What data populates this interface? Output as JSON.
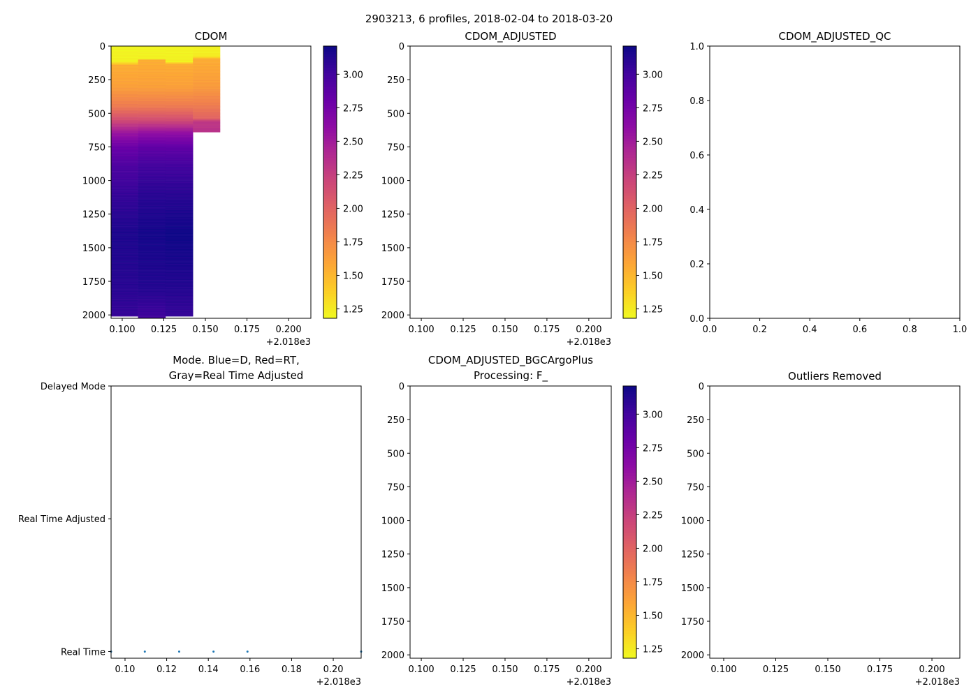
{
  "suptitle": "2903213, 6 profiles, 2018-02-04 to 2018-03-20",
  "colors": {
    "scatter": "#1f77b4",
    "axis": "#000000"
  },
  "chart_data": [
    {
      "id": "cdom",
      "type": "heatmap",
      "title": "CDOM",
      "xlim": [
        0.0933,
        0.2134
      ],
      "x_offset_label": "+2.018e3",
      "xticks": [
        0.1,
        0.125,
        0.15,
        0.175,
        0.2
      ],
      "xtick_labels": [
        "0.100",
        "0.125",
        "0.150",
        "0.175",
        "0.200"
      ],
      "ylim": [
        2025,
        0
      ],
      "yticks": [
        0,
        250,
        500,
        750,
        1000,
        1250,
        1500,
        1750,
        2000
      ],
      "ytick_labels": [
        "0",
        "250",
        "500",
        "750",
        "1000",
        "1250",
        "1500",
        "1750",
        "2000"
      ],
      "colorbar": {
        "cmap": "plasma_r",
        "vmin": 1.18,
        "vmax": 3.21,
        "ticks": [
          1.25,
          1.5,
          1.75,
          2.0,
          2.25,
          2.5,
          2.75,
          3.0
        ],
        "tick_labels": [
          "1.25",
          "1.50",
          "1.75",
          "2.00",
          "2.25",
          "2.50",
          "2.75",
          "3.00"
        ]
      },
      "profiles": [
        {
          "x0": 0.0933,
          "x1": 0.1095,
          "max_depth": 2010,
          "depths": [
            0,
            120,
            140,
            300,
            450,
            550,
            650,
            750,
            900,
            1100,
            1400,
            1800,
            2010
          ],
          "values": [
            1.2,
            1.22,
            1.55,
            1.62,
            1.85,
            2.15,
            2.55,
            2.8,
            2.95,
            3.05,
            3.15,
            3.1,
            3.05
          ]
        },
        {
          "x0": 0.1095,
          "x1": 0.126,
          "max_depth": 2025,
          "depths": [
            0,
            95,
            105,
            300,
            450,
            550,
            650,
            750,
            900,
            1100,
            1400,
            1800,
            2025
          ],
          "values": [
            1.2,
            1.22,
            1.55,
            1.62,
            1.85,
            2.15,
            2.6,
            2.85,
            3.0,
            3.1,
            3.18,
            3.12,
            3.0
          ]
        },
        {
          "x0": 0.126,
          "x1": 0.1425,
          "max_depth": 2010,
          "depths": [
            0,
            120,
            135,
            300,
            450,
            550,
            650,
            750,
            900,
            1100,
            1400,
            1800,
            2010
          ],
          "values": [
            1.2,
            1.22,
            1.55,
            1.62,
            1.85,
            2.15,
            2.6,
            2.85,
            3.0,
            3.1,
            3.2,
            3.12,
            3.05
          ]
        },
        {
          "x0": 0.1425,
          "x1": 0.1588,
          "max_depth": 640,
          "depths": [
            0,
            80,
            95,
            300,
            450,
            540,
            560,
            640
          ],
          "values": [
            1.2,
            1.25,
            1.55,
            1.65,
            1.85,
            2.0,
            2.3,
            2.35
          ]
        }
      ]
    },
    {
      "id": "cdom_adjusted",
      "type": "heatmap",
      "title": "CDOM_ADJUSTED",
      "xlim": [
        0.0933,
        0.2134
      ],
      "x_offset_label": "+2.018e3",
      "xticks": [
        0.1,
        0.125,
        0.15,
        0.175,
        0.2
      ],
      "xtick_labels": [
        "0.100",
        "0.125",
        "0.150",
        "0.175",
        "0.200"
      ],
      "ylim": [
        2025,
        0
      ],
      "yticks": [
        0,
        250,
        500,
        750,
        1000,
        1250,
        1500,
        1750,
        2000
      ],
      "ytick_labels": [
        "0",
        "250",
        "500",
        "750",
        "1000",
        "1250",
        "1500",
        "1750",
        "2000"
      ],
      "colorbar": {
        "cmap": "plasma_r",
        "vmin": 1.18,
        "vmax": 3.21,
        "ticks": [
          1.25,
          1.5,
          1.75,
          2.0,
          2.25,
          2.5,
          2.75,
          3.0
        ],
        "tick_labels": [
          "1.25",
          "1.50",
          "1.75",
          "2.00",
          "2.25",
          "2.50",
          "2.75",
          "3.00"
        ]
      },
      "profiles": []
    },
    {
      "id": "cdom_adjusted_qc",
      "type": "scatter",
      "title": "CDOM_ADJUSTED_QC",
      "xlim": [
        0,
        1
      ],
      "xticks": [
        0,
        0.2,
        0.4,
        0.6,
        0.8,
        1.0
      ],
      "xtick_labels": [
        "0.0",
        "0.2",
        "0.4",
        "0.6",
        "0.8",
        "1.0"
      ],
      "ylim": [
        0,
        1
      ],
      "yticks": [
        0,
        0.2,
        0.4,
        0.6,
        0.8,
        1.0
      ],
      "ytick_labels": [
        "0.0",
        "0.2",
        "0.4",
        "0.6",
        "0.8",
        "1.0"
      ],
      "points": []
    },
    {
      "id": "mode",
      "type": "scatter",
      "title": "Mode. Blue=D, Red=RT,",
      "title2": "Gray=Real Time Adjusted",
      "xlim": [
        0.0933,
        0.2134
      ],
      "x_offset_label": "+2.018e3",
      "xticks": [
        0.1,
        0.12,
        0.14,
        0.16,
        0.18,
        0.2
      ],
      "xtick_labels": [
        "0.10",
        "0.12",
        "0.14",
        "0.16",
        "0.18",
        "0.20"
      ],
      "ylim": [
        -0.05,
        2.0
      ],
      "yticks": [
        0,
        1,
        2
      ],
      "ytick_labels": [
        "Real Time",
        "Real Time Adjusted",
        "Delayed Mode"
      ],
      "points": [
        {
          "x": 0.0933,
          "y": 0
        },
        {
          "x": 0.1095,
          "y": 0
        },
        {
          "x": 0.126,
          "y": 0
        },
        {
          "x": 0.1425,
          "y": 0
        },
        {
          "x": 0.1588,
          "y": 0
        },
        {
          "x": 0.2134,
          "y": 0
        }
      ]
    },
    {
      "id": "bgcargoplus",
      "type": "heatmap",
      "title": "CDOM_ADJUSTED_BGCArgoPlus",
      "title2": "Processing: F_",
      "xlim": [
        0.0933,
        0.2134
      ],
      "x_offset_label": "+2.018e3",
      "xticks": [
        0.1,
        0.125,
        0.15,
        0.175,
        0.2
      ],
      "xtick_labels": [
        "0.100",
        "0.125",
        "0.150",
        "0.175",
        "0.200"
      ],
      "ylim": [
        2025,
        0
      ],
      "yticks": [
        0,
        250,
        500,
        750,
        1000,
        1250,
        1500,
        1750,
        2000
      ],
      "ytick_labels": [
        "0",
        "250",
        "500",
        "750",
        "1000",
        "1250",
        "1500",
        "1750",
        "2000"
      ],
      "colorbar": {
        "cmap": "plasma_r",
        "vmin": 1.18,
        "vmax": 3.21,
        "ticks": [
          1.25,
          1.5,
          1.75,
          2.0,
          2.25,
          2.5,
          2.75,
          3.0
        ],
        "tick_labels": [
          "1.25",
          "1.50",
          "1.75",
          "2.00",
          "2.25",
          "2.50",
          "2.75",
          "3.00"
        ]
      },
      "profiles": []
    },
    {
      "id": "outliers",
      "type": "heatmap",
      "title": "Outliers Removed",
      "xlim": [
        0.0933,
        0.2134
      ],
      "x_offset_label": "+2.018e3",
      "xticks": [
        0.1,
        0.125,
        0.15,
        0.175,
        0.2
      ],
      "xtick_labels": [
        "0.100",
        "0.125",
        "0.150",
        "0.175",
        "0.200"
      ],
      "ylim": [
        2025,
        0
      ],
      "yticks": [
        0,
        250,
        500,
        750,
        1000,
        1250,
        1500,
        1750,
        2000
      ],
      "ytick_labels": [
        "0",
        "250",
        "500",
        "750",
        "1000",
        "1250",
        "1500",
        "1750",
        "2000"
      ],
      "profiles": []
    }
  ]
}
